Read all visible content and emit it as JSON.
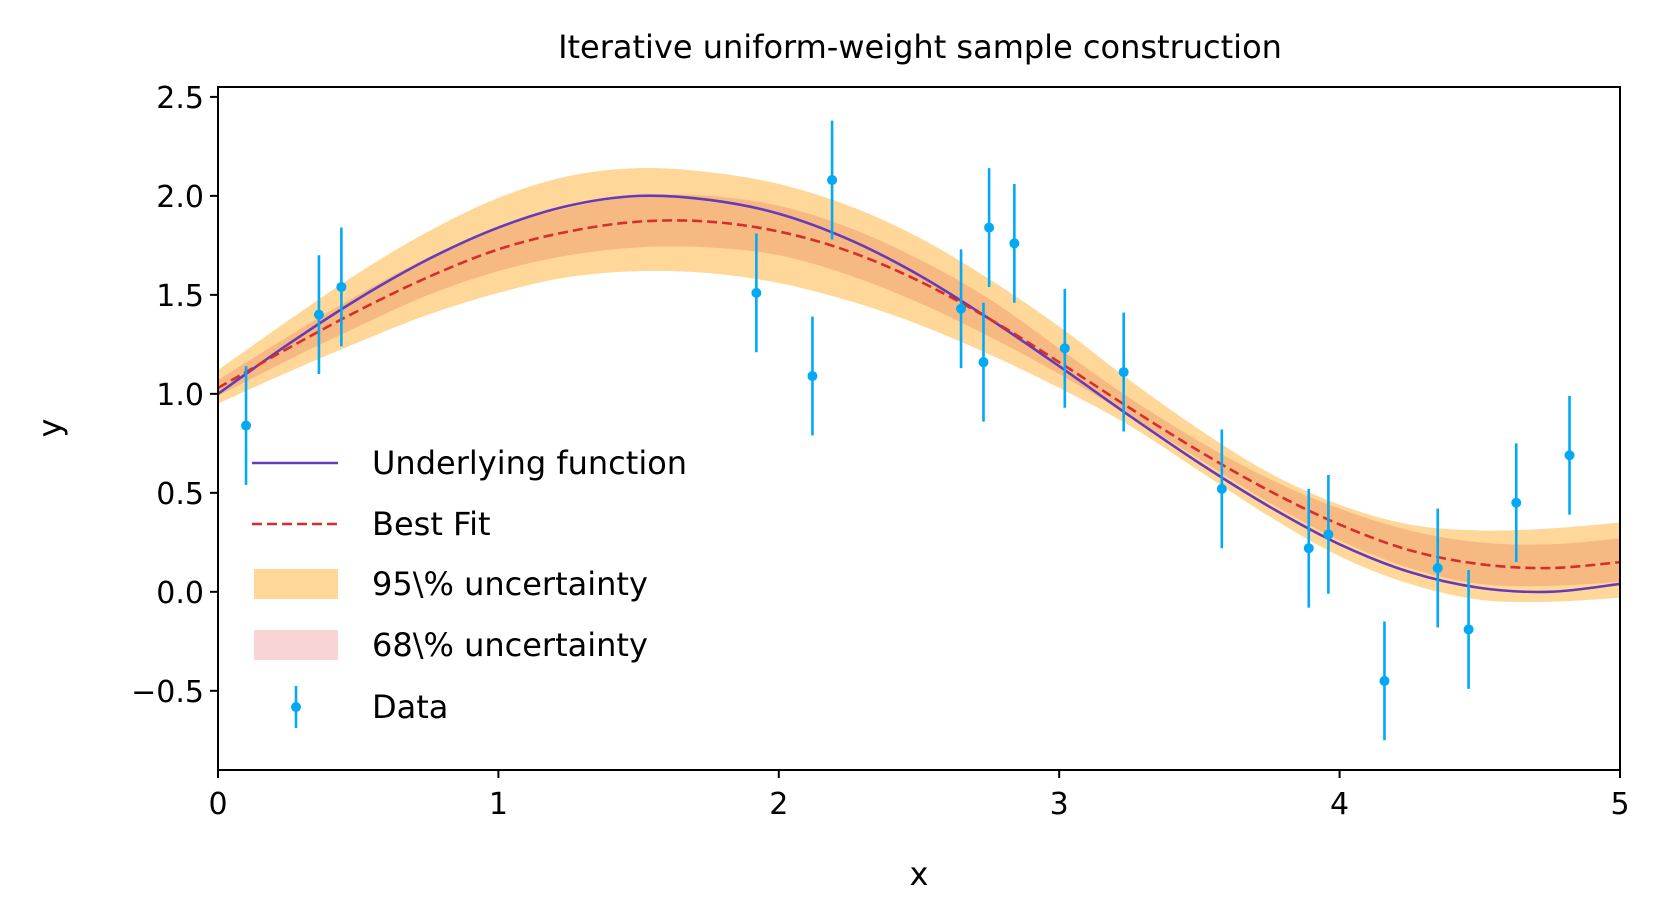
{
  "chart_data": {
    "type": "line",
    "title": "Iterative uniform-weight sample construction",
    "xlabel": "x",
    "ylabel": "y",
    "xlim": [
      0,
      5
    ],
    "ylim": [
      -0.9,
      2.55
    ],
    "xticks": [
      0,
      1,
      2,
      3,
      4,
      5
    ],
    "xtick_labels": [
      "0",
      "1",
      "2",
      "3",
      "4",
      "5"
    ],
    "yticks": [
      -0.5,
      0.0,
      0.5,
      1.0,
      1.5,
      2.0,
      2.5
    ],
    "ytick_labels": [
      "−0.5",
      "0.0",
      "0.5",
      "1.0",
      "1.5",
      "2.0",
      "2.5"
    ],
    "grid": false,
    "legend_position": "lower-left",
    "series": [
      {
        "name": "Underlying function",
        "kind": "line",
        "color": "#673ab7",
        "style": "solid",
        "x": [
          0,
          0.25,
          0.5,
          0.75,
          1.0,
          1.25,
          1.5,
          1.75,
          2.0,
          2.25,
          2.5,
          2.75,
          3.0,
          3.25,
          3.5,
          3.75,
          4.0,
          4.25,
          4.5,
          4.75,
          5.0
        ],
        "y": [
          1.0,
          1.25,
          1.48,
          1.68,
          1.84,
          1.95,
          2.0,
          1.98,
          1.91,
          1.78,
          1.6,
          1.38,
          1.14,
          0.89,
          0.65,
          0.43,
          0.24,
          0.1,
          0.02,
          0.0,
          0.04
        ]
      },
      {
        "name": "Best Fit",
        "kind": "line",
        "color": "#d32f2f",
        "style": "dashed",
        "x": [
          0,
          0.25,
          0.5,
          0.75,
          1.0,
          1.25,
          1.5,
          1.75,
          2.0,
          2.25,
          2.5,
          2.75,
          3.0,
          3.25,
          3.5,
          3.75,
          4.0,
          4.25,
          4.5,
          4.75,
          5.0
        ],
        "y": [
          1.03,
          1.23,
          1.42,
          1.59,
          1.73,
          1.82,
          1.87,
          1.87,
          1.82,
          1.72,
          1.57,
          1.38,
          1.16,
          0.93,
          0.71,
          0.51,
          0.34,
          0.21,
          0.14,
          0.12,
          0.15
        ]
      },
      {
        "name": "95\\% uncertainty",
        "kind": "band",
        "color": "#ffd799",
        "x": [
          0,
          0.25,
          0.5,
          0.75,
          1.0,
          1.25,
          1.5,
          1.75,
          2.0,
          2.25,
          2.5,
          2.75,
          3.0,
          3.25,
          3.5,
          3.75,
          4.0,
          4.25,
          4.5,
          4.75,
          5.0
        ],
        "lower": [
          0.95,
          1.11,
          1.26,
          1.4,
          1.51,
          1.59,
          1.62,
          1.61,
          1.56,
          1.47,
          1.35,
          1.2,
          1.03,
          0.84,
          0.61,
          0.38,
          0.18,
          0.04,
          -0.04,
          -0.05,
          -0.03
        ],
        "upper": [
          1.12,
          1.37,
          1.61,
          1.82,
          1.99,
          2.1,
          2.14,
          2.12,
          2.06,
          1.95,
          1.79,
          1.58,
          1.34,
          1.07,
          0.82,
          0.6,
          0.44,
          0.34,
          0.31,
          0.32,
          0.35
        ]
      },
      {
        "name": "68\\% uncertainty",
        "kind": "band",
        "color": "#f8d4d4",
        "x": [
          0,
          0.25,
          0.5,
          0.75,
          1.0,
          1.25,
          1.5,
          1.75,
          2.0,
          2.25,
          2.5,
          2.75,
          3.0,
          3.25,
          3.5,
          3.75,
          4.0,
          4.25,
          4.5,
          4.75,
          5.0
        ],
        "lower": [
          0.99,
          1.17,
          1.34,
          1.5,
          1.62,
          1.7,
          1.74,
          1.74,
          1.7,
          1.6,
          1.46,
          1.29,
          1.1,
          0.89,
          0.67,
          0.45,
          0.26,
          0.12,
          0.04,
          0.03,
          0.05
        ],
        "upper": [
          1.07,
          1.29,
          1.5,
          1.69,
          1.84,
          1.94,
          2.0,
          2.0,
          1.95,
          1.84,
          1.68,
          1.48,
          1.23,
          0.98,
          0.76,
          0.57,
          0.42,
          0.31,
          0.25,
          0.24,
          0.27
        ]
      },
      {
        "name": "Data",
        "kind": "errorbar",
        "color": "#03a9f4",
        "x": [
          0.1,
          0.36,
          0.44,
          1.92,
          2.12,
          2.19,
          2.65,
          2.73,
          2.75,
          2.84,
          3.02,
          3.23,
          3.58,
          3.89,
          3.96,
          4.16,
          4.35,
          4.46,
          4.63,
          4.82
        ],
        "y": [
          0.84,
          1.4,
          1.54,
          1.51,
          1.09,
          2.08,
          1.43,
          1.16,
          1.84,
          1.76,
          1.23,
          1.11,
          0.52,
          0.22,
          0.29,
          -0.45,
          0.12,
          -0.19,
          0.45,
          0.69
        ],
        "yerr": [
          0.3,
          0.3,
          0.3,
          0.3,
          0.3,
          0.3,
          0.3,
          0.3,
          0.3,
          0.3,
          0.3,
          0.3,
          0.3,
          0.3,
          0.3,
          0.3,
          0.3,
          0.3,
          0.3,
          0.3
        ]
      }
    ]
  }
}
